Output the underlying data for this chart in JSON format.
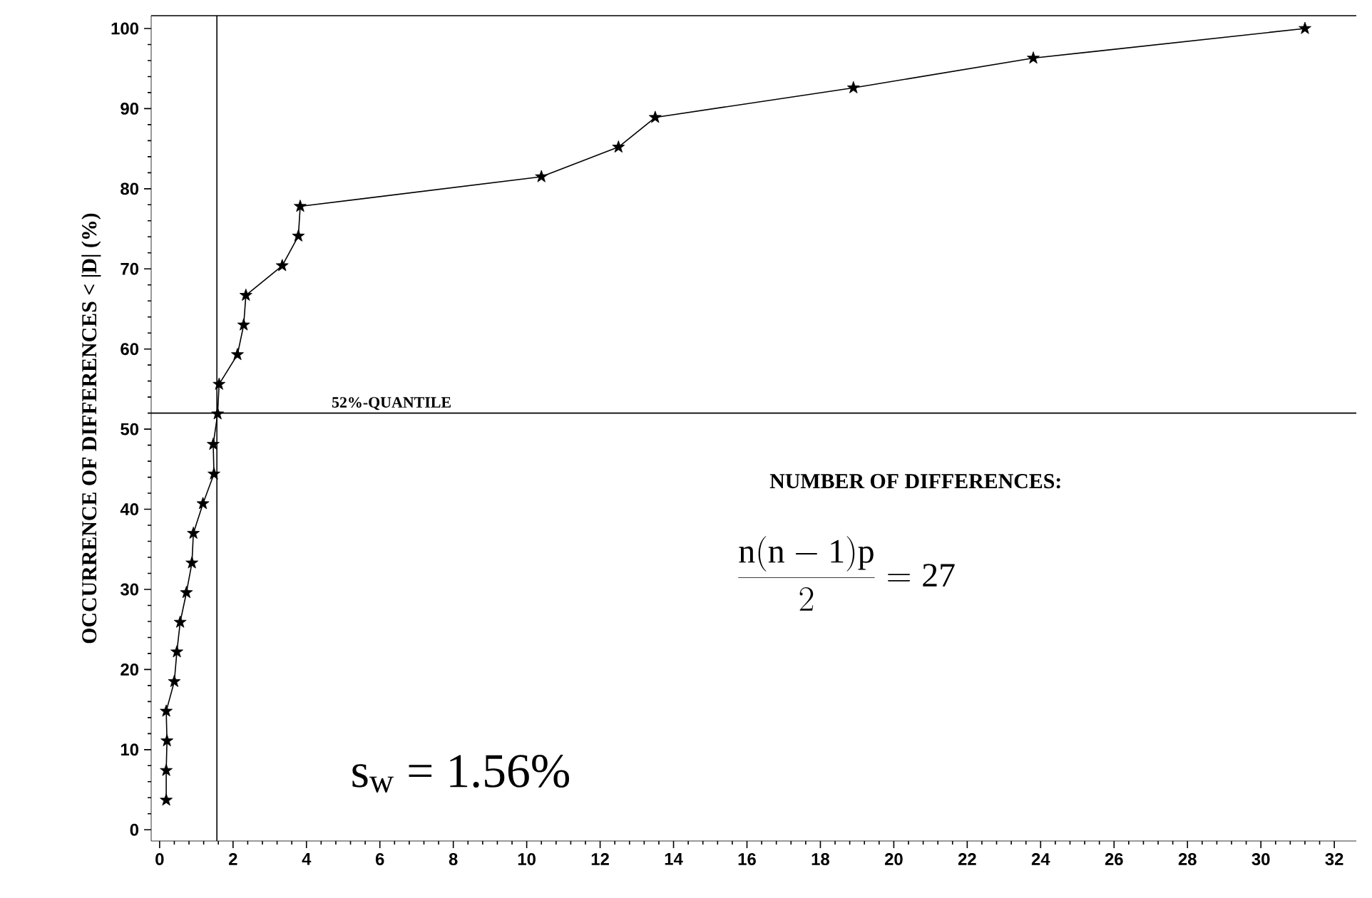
{
  "chart_data": {
    "type": "line",
    "ylabel": "OCCURRENCE OF DIFFERENCES < |D| (%)",
    "x": [
      0.18,
      0.18,
      0.2,
      0.18,
      0.4,
      0.47,
      0.56,
      0.73,
      0.88,
      0.92,
      1.18,
      1.48,
      1.46,
      1.58,
      1.62,
      2.12,
      2.29,
      2.35,
      3.34,
      3.78,
      3.83,
      10.4,
      12.5,
      13.5,
      18.9,
      23.8,
      31.2
    ],
    "series": [
      {
        "color": "#000000",
        "values": [
          3.7,
          7.4,
          11.1,
          14.8,
          18.5,
          22.2,
          25.9,
          29.6,
          33.3,
          37.0,
          40.7,
          44.4,
          48.1,
          51.9,
          55.6,
          59.3,
          63.0,
          66.7,
          70.4,
          74.1,
          77.8,
          81.5,
          85.2,
          88.9,
          92.6,
          96.3,
          100
        ]
      }
    ],
    "marker": "star",
    "line_style": "solid",
    "xlim": [
      -0.23,
      32.6
    ],
    "ylim": [
      -1.4,
      101.6
    ],
    "xticks": [
      0,
      2,
      4,
      6,
      8,
      10,
      12,
      14,
      16,
      18,
      20,
      22,
      24,
      26,
      28,
      30,
      32
    ],
    "yticks": [
      0,
      10,
      20,
      30,
      40,
      50,
      60,
      70,
      80,
      90,
      100
    ],
    "ref_lines": [
      {
        "axis": "x",
        "value": 1.56
      },
      {
        "axis": "y",
        "value": 52,
        "label": "52%-QUANTILE"
      }
    ],
    "annotations": [
      "NUMBER OF DIFFERENCES:",
      "\\frac{\\mathrm{n(n-1)p}}{2} = \\mathrm{27}",
      "s$_{w}$ = 1.56%"
    ]
  }
}
